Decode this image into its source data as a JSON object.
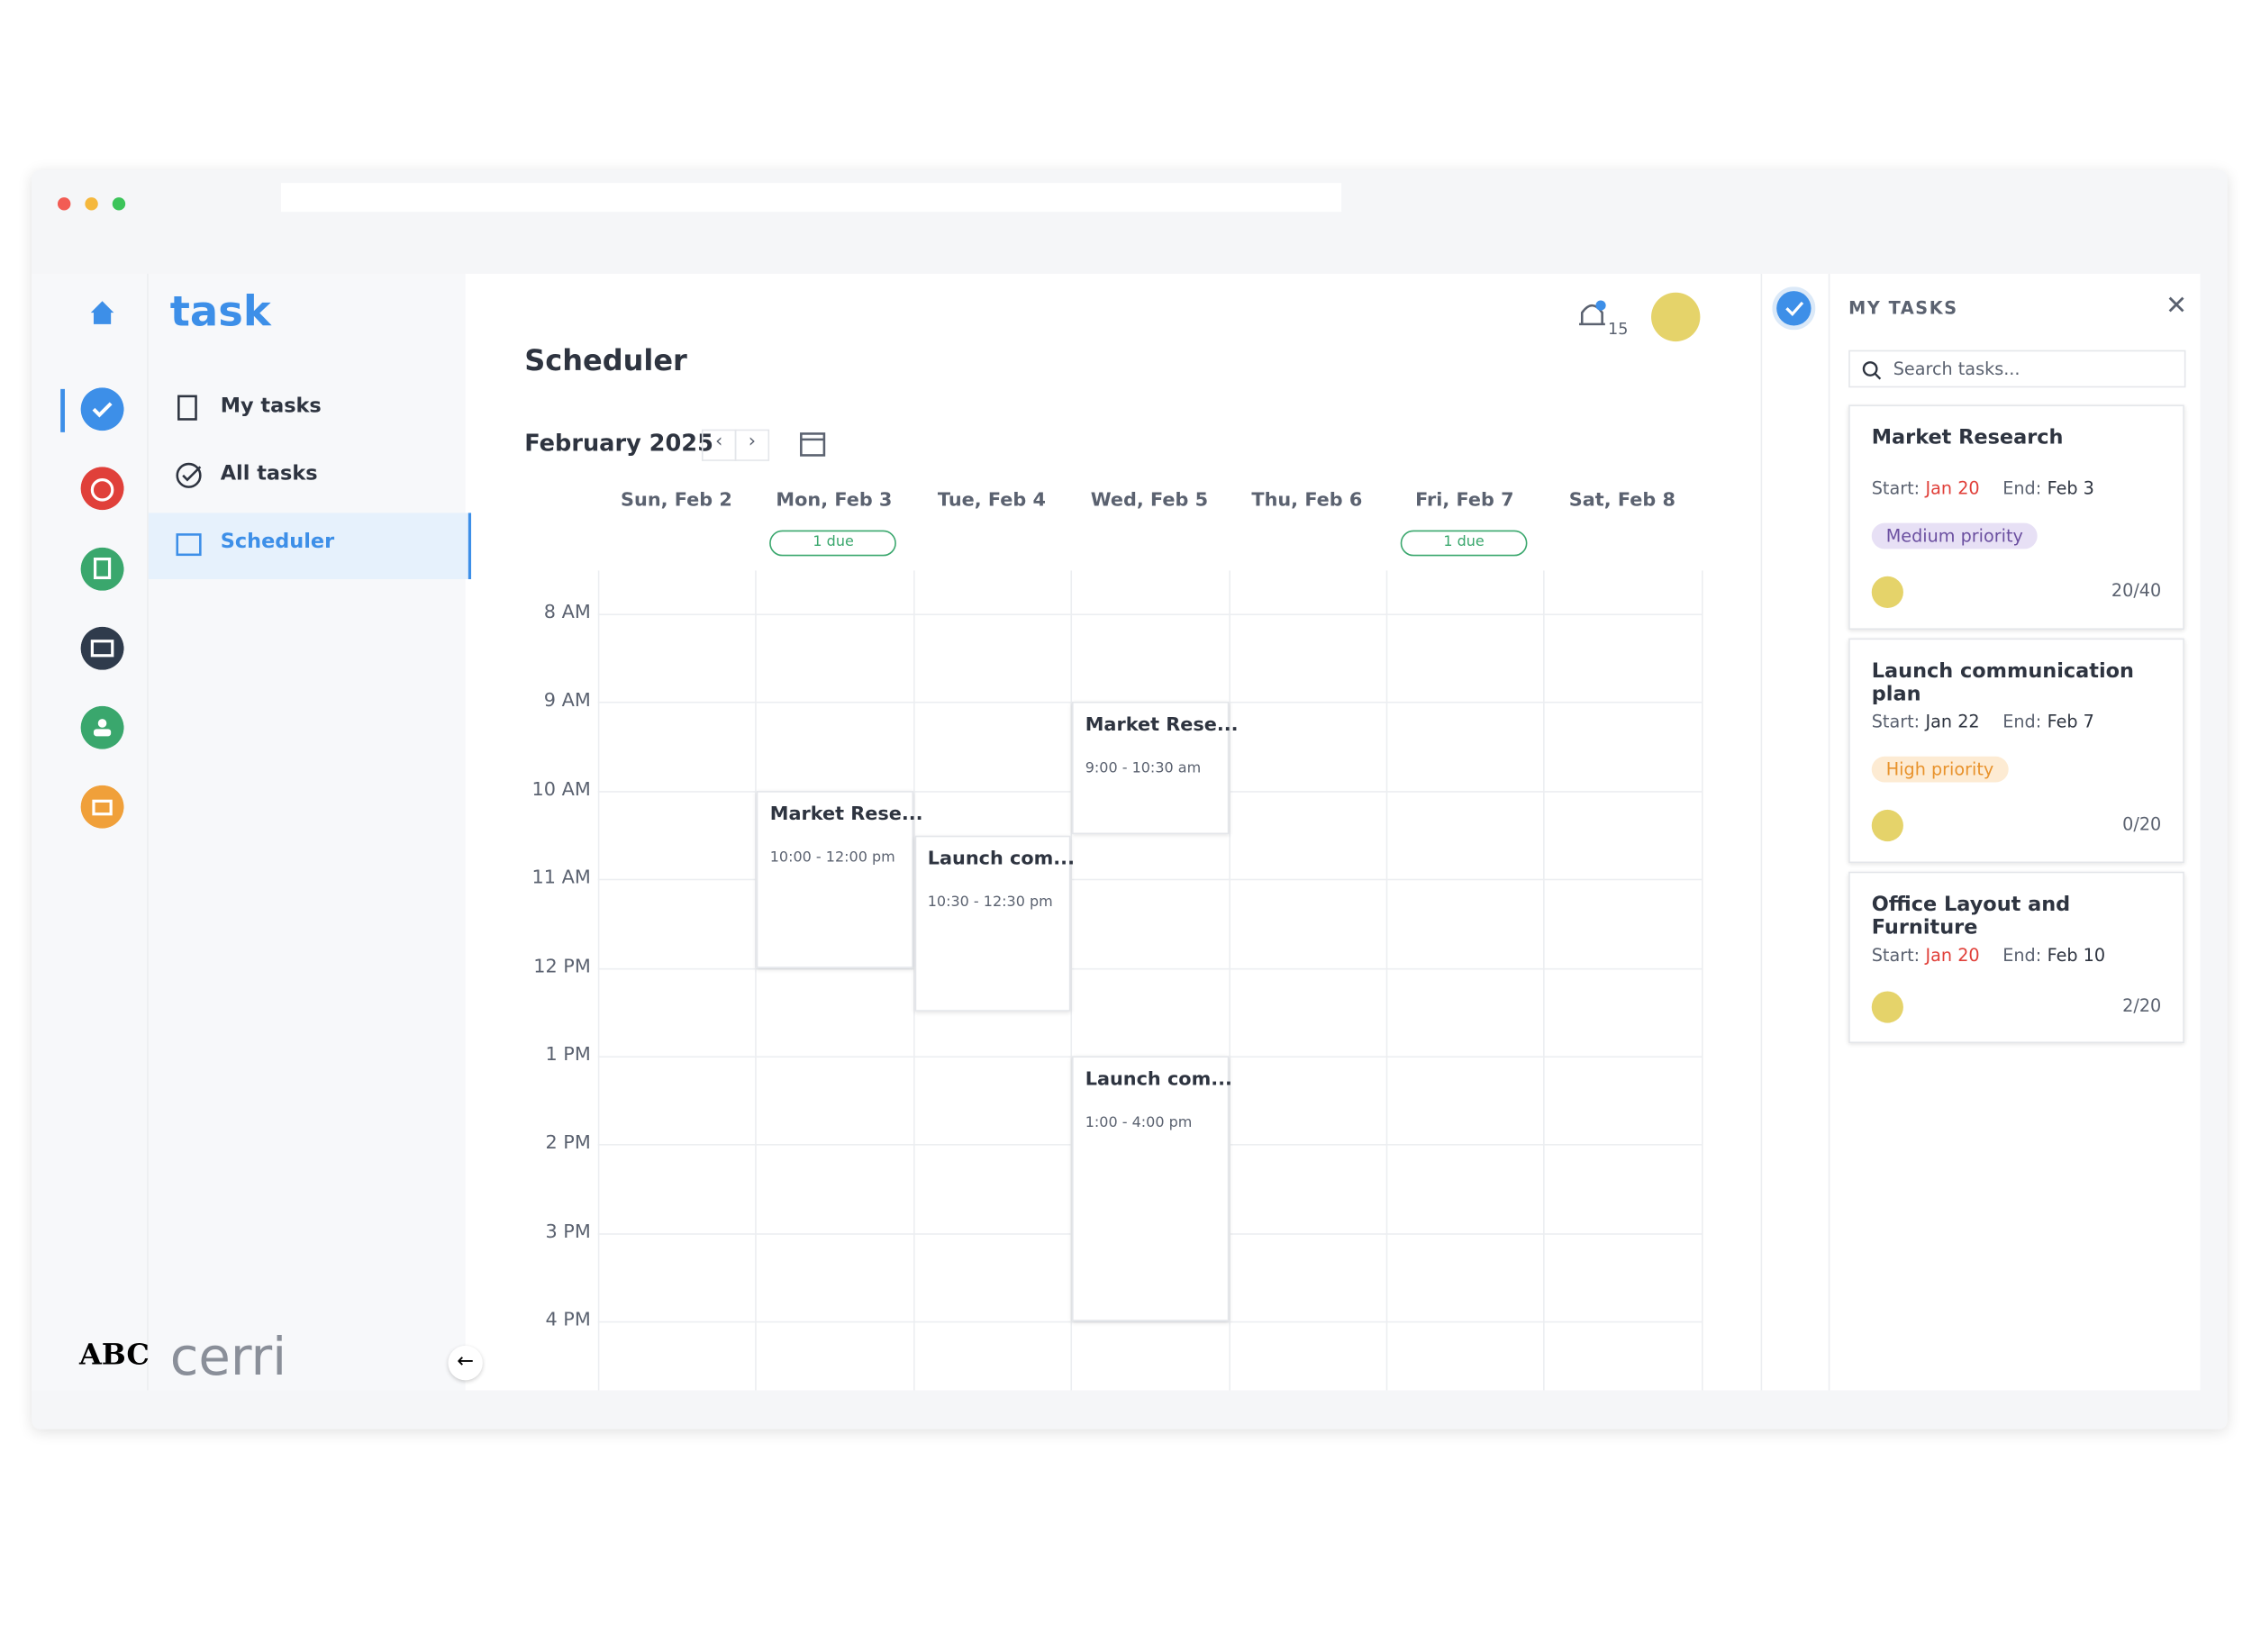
{
  "app": {
    "logo": "task",
    "brand_badge": "ABC",
    "brand": "cerri",
    "nav": [
      "My tasks",
      "All tasks",
      "Scheduler"
    ]
  },
  "scheduler": {
    "title": "Scheduler",
    "notifications": "15",
    "month": "February 2025",
    "days": [
      "Sun, Feb 2",
      "Mon, Feb 3",
      "Tue, Feb 4",
      "Wed, Feb 5",
      "Thu, Feb 6",
      "Fri, Feb 7",
      "Sat, Feb 8"
    ],
    "due_badges": [
      "1 due",
      "1 due"
    ],
    "hours": [
      "8 AM",
      "9 AM",
      "10 AM",
      "11 AM",
      "12 PM",
      "1 PM",
      "2 PM",
      "3 PM",
      "4 PM"
    ],
    "events": [
      {
        "title": "Market Rese...",
        "time": "9:00 - 10:30 am"
      },
      {
        "title": "Market Rese...",
        "time": "10:00 - 12:00 pm"
      },
      {
        "title": "Launch com...",
        "time": "10:30 - 12:30 pm"
      },
      {
        "title": "Launch com...",
        "time": "1:00 - 4:00 pm"
      }
    ]
  },
  "my_tasks": {
    "title": "MY TASKS",
    "search_placeholder": "Search tasks...",
    "tasks": [
      {
        "title": "Market Research",
        "start_label": "Start:",
        "start": "Jan 20",
        "end_label": "End:",
        "end": "Feb 3",
        "priority": "Medium priority",
        "progress": "20/40"
      },
      {
        "title": "Launch communication plan",
        "start_label": "Start:",
        "start": "Jan 22",
        "end_label": "End:",
        "end": "Feb 7",
        "priority": "High priority",
        "progress": "0/20"
      },
      {
        "title": "Office Layout and Furniture",
        "start_label": "Start:",
        "start": "Jan 20",
        "end_label": "End:",
        "end": "Feb 10",
        "progress": "2/20"
      }
    ]
  }
}
